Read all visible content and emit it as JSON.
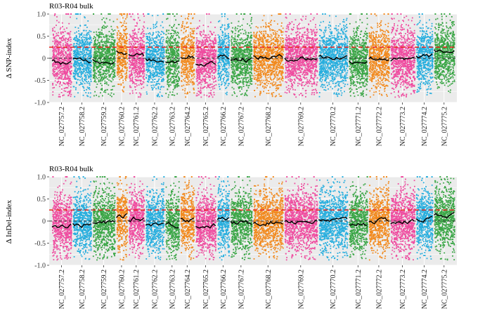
{
  "colors": {
    "panel_bg": "#ebebeb",
    "grid": "#ffffff",
    "threshold_line": "#e8251e",
    "zero_line": "#333333",
    "trend_line": "#000000",
    "palette": [
      "#ef4da0",
      "#27aede",
      "#3aa646",
      "#f28a1f"
    ]
  },
  "chart_data": [
    {
      "type": "scatter",
      "title": "R03-R04 bulk",
      "ylabel": "Δ SNP-index",
      "ylim": [
        -1.0,
        1.0
      ],
      "yticks": [
        "-1.0",
        "-0.5",
        "0",
        "0.5",
        "1.0"
      ],
      "ytick_values": [
        -1.0,
        -0.5,
        0,
        0.5,
        1.0
      ],
      "threshold": 0.25,
      "reference_line": 0,
      "grid": true,
      "categories": [
        "NC_027757.2",
        "NC_027758.2",
        "NC_027759.2",
        "NC_027760.2",
        "NC_027761.2",
        "NC_027762.2",
        "NC_027763.2",
        "NC_027764.2",
        "NC_027765.2",
        "NC_027766.2",
        "NC_027767.2",
        "NC_027768.2",
        "NC_027769.2",
        "NC_027770.2",
        "NC_027771.2",
        "NC_027772.2",
        "NC_027773.2",
        "NC_027774.2",
        "NC_027775.2"
      ],
      "relative_lengths": [
        1.0,
        0.95,
        1.15,
        0.55,
        0.8,
        0.95,
        0.7,
        0.7,
        1.05,
        0.6,
        1.1,
        1.55,
        1.7,
        1.5,
        0.95,
        1.05,
        1.25,
        0.85,
        1.05
      ],
      "colors": [
        "#ef4da0",
        "#27aede",
        "#3aa646",
        "#f28a1f",
        "#ef4da0",
        "#27aede",
        "#3aa646",
        "#f28a1f",
        "#ef4da0",
        "#27aede",
        "#3aa646",
        "#f28a1f",
        "#ef4da0",
        "#27aede",
        "#3aa646",
        "#f28a1f",
        "#ef4da0",
        "#27aede",
        "#3aa646"
      ],
      "trend_means": [
        -0.1,
        -0.05,
        -0.05,
        0.15,
        0.05,
        -0.05,
        -0.05,
        0.05,
        -0.12,
        0.05,
        -0.02,
        0.02,
        0.0,
        0.02,
        -0.05,
        0.0,
        -0.05,
        0.05,
        0.15
      ]
    },
    {
      "type": "scatter",
      "title": "R03-R04 bulk",
      "ylabel": "Δ InDel-index",
      "ylim": [
        -1.0,
        1.0
      ],
      "yticks": [
        "-1.0",
        "-0.5",
        "0",
        "0.5",
        "1.0"
      ],
      "ytick_values": [
        -1.0,
        -0.5,
        0,
        0.5,
        1.0
      ],
      "threshold": 0.25,
      "reference_line": 0,
      "grid": true,
      "categories": [
        "NC_027757.2",
        "NC_027758.2",
        "NC_027759.2",
        "NC_027760.2",
        "NC_027761.2",
        "NC_027762.2",
        "NC_027763.2",
        "NC_027764.2",
        "NC_027765.2",
        "NC_027766.2",
        "NC_027767.2",
        "NC_027768.2",
        "NC_027769.2",
        "NC_027770.2",
        "NC_027771.2",
        "NC_027772.2",
        "NC_027773.2",
        "NC_027774.2",
        "NC_027775.2"
      ],
      "relative_lengths": [
        1.0,
        0.95,
        1.15,
        0.55,
        0.8,
        0.95,
        0.7,
        0.7,
        1.05,
        0.6,
        1.1,
        1.55,
        1.7,
        1.5,
        0.95,
        1.05,
        1.25,
        0.85,
        1.05
      ],
      "colors": [
        "#ef4da0",
        "#27aede",
        "#3aa646",
        "#f28a1f",
        "#ef4da0",
        "#27aede",
        "#3aa646",
        "#f28a1f",
        "#ef4da0",
        "#27aede",
        "#3aa646",
        "#f28a1f",
        "#ef4da0",
        "#27aede",
        "#3aa646",
        "#f28a1f",
        "#ef4da0",
        "#27aede",
        "#3aa646"
      ],
      "trend_means": [
        -0.1,
        -0.08,
        -0.05,
        0.12,
        0.05,
        -0.05,
        -0.08,
        0.05,
        -0.1,
        0.05,
        -0.05,
        -0.02,
        0.0,
        0.0,
        -0.05,
        0.0,
        -0.02,
        0.05,
        0.15
      ]
    }
  ]
}
